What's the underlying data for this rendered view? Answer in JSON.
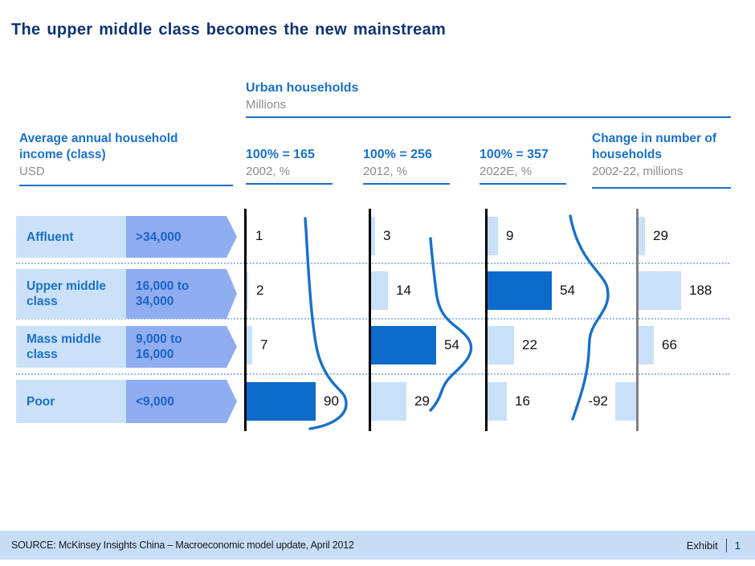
{
  "title": "The upper middle class becomes the new mainstream",
  "group_header": {
    "title": "Urban households",
    "subtitle": "Millions"
  },
  "left_header": {
    "title": "Average annual household income (class)",
    "subtitle": "USD"
  },
  "right_header": {
    "title": "Change in number of households",
    "subtitle": "2002-22, millions"
  },
  "income_classes": [
    {
      "label": "Affluent",
      "range": ">34,000"
    },
    {
      "label": "Upper middle class",
      "range": "16,000 to 34,000"
    },
    {
      "label": "Mass middle class",
      "range": "9,000 to 16,000"
    },
    {
      "label": "Poor",
      "range": "<9,000"
    }
  ],
  "footer": {
    "source": "SOURCE: McKinsey Insights China – Macroeconomic model update, April 2012",
    "exhibit_label": "Exhibit",
    "exhibit_number": "1"
  },
  "colors": {
    "accent_blue": "#1a70c7",
    "title_navy": "#0e3370",
    "dark_bar": "#0d6bcb",
    "light_bar": "#c9e0f9",
    "label_box": "#cbe1f9",
    "arrow_fill": "#8fadf0",
    "gray_text": "#8c8c8c",
    "dotted_line": "#9fb9ec",
    "footer_bg": "#c6ddf5",
    "axis_black": "#000000",
    "axis_gray": "#808080"
  },
  "chart_data": {
    "type": "bar",
    "orientation": "horizontal",
    "title": "Urban households",
    "units": "Millions",
    "categories": [
      "Affluent",
      "Upper middle class",
      "Mass middle class",
      "Poor"
    ],
    "columns": [
      {
        "header": "100% = 165",
        "subheader": "2002, %",
        "values": [
          1,
          2,
          7,
          90
        ],
        "highlight_row": 3
      },
      {
        "header": "100% = 256",
        "subheader": "2012, %",
        "values": [
          3,
          14,
          54,
          29
        ],
        "highlight_row": 2
      },
      {
        "header": "100% = 357",
        "subheader": "2022E, %",
        "values": [
          9,
          54,
          22,
          16
        ],
        "highlight_row": 1
      },
      {
        "header": "Change in number of households",
        "subheader": "2002-22, millions",
        "values": [
          29,
          188,
          66,
          -92
        ],
        "highlight_row": null
      }
    ],
    "legend": "Darker bar = largest income class of that year; blue curves show the shift of the household distribution over time"
  }
}
